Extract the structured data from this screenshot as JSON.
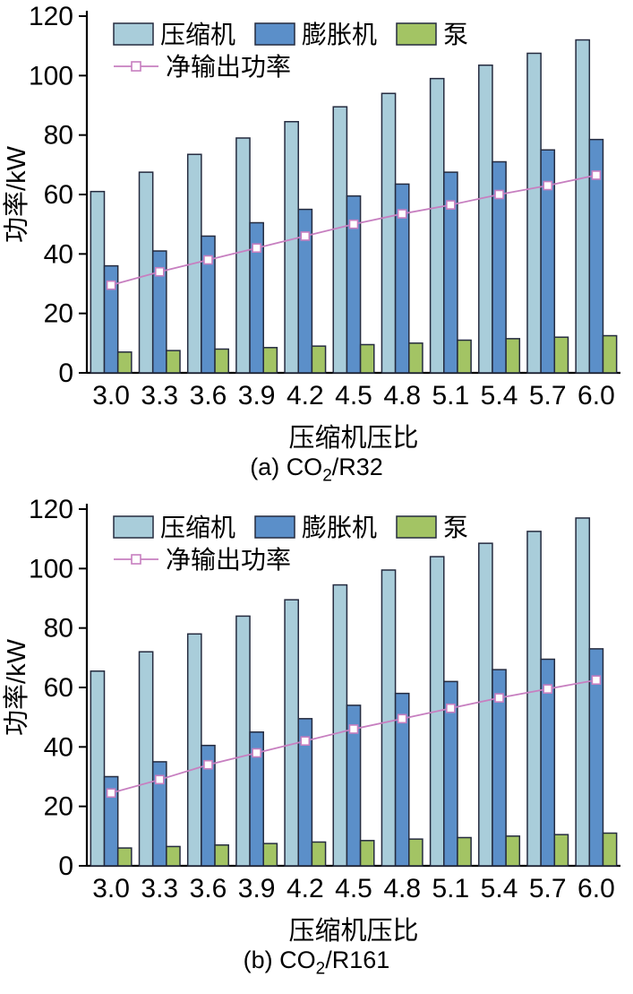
{
  "captions": [
    {
      "pre": "(a) CO",
      "sub": "2",
      "post": "/R32"
    },
    {
      "pre": "(b) CO",
      "sub": "2",
      "post": "/R161"
    }
  ],
  "chart_data": [
    {
      "type": "bar",
      "title": "(a) CO2/R32",
      "xlabel": "压缩机压比",
      "ylabel": "功率/kW",
      "ylim": [
        0,
        120
      ],
      "yticks": [
        0,
        20,
        40,
        60,
        80,
        100,
        120
      ],
      "grid": false,
      "legend_position": "top-left",
      "bar_edge_color": "#252b3f",
      "categories": [
        "3.0",
        "3.3",
        "3.6",
        "3.9",
        "4.2",
        "4.5",
        "4.8",
        "5.1",
        "5.4",
        "5.7",
        "6.0"
      ],
      "series": [
        {
          "name": "压缩机",
          "type": "bar",
          "color": "#a9cdda",
          "values": [
            61,
            67.5,
            73.5,
            79,
            84.5,
            89.5,
            94,
            99,
            103.5,
            107.5,
            112
          ]
        },
        {
          "name": "膨胀机",
          "type": "bar",
          "color": "#5b8fc9",
          "values": [
            36,
            41,
            46,
            50.5,
            55,
            59.5,
            63.5,
            67.5,
            71,
            75,
            78.5
          ]
        },
        {
          "name": "泵",
          "type": "bar",
          "color": "#a3c464",
          "values": [
            7,
            7.5,
            8,
            8.5,
            9,
            9.5,
            10,
            11,
            11.5,
            12,
            12.5
          ]
        }
      ],
      "line_series": {
        "name": "净输出功率",
        "type": "line",
        "color": "#c77fc0",
        "marker": "square",
        "values": [
          29.5,
          34,
          38,
          42,
          46,
          50,
          53.5,
          56.5,
          60,
          63,
          66.5
        ]
      }
    },
    {
      "type": "bar",
      "title": "(b) CO2/R161",
      "xlabel": "压缩机压比",
      "ylabel": "功率/kW",
      "ylim": [
        0,
        120
      ],
      "yticks": [
        0,
        20,
        40,
        60,
        80,
        100,
        120
      ],
      "grid": false,
      "legend_position": "top-left",
      "bar_edge_color": "#252b3f",
      "categories": [
        "3.0",
        "3.3",
        "3.6",
        "3.9",
        "4.2",
        "4.5",
        "4.8",
        "5.1",
        "5.4",
        "5.7",
        "6.0"
      ],
      "series": [
        {
          "name": "压缩机",
          "type": "bar",
          "color": "#a9cdda",
          "values": [
            65.5,
            72,
            78,
            84,
            89.5,
            94.5,
            99.5,
            104,
            108.5,
            112.5,
            117
          ]
        },
        {
          "name": "膨胀机",
          "type": "bar",
          "color": "#5b8fc9",
          "values": [
            30,
            35,
            40.5,
            45,
            49.5,
            54,
            58,
            62,
            66,
            69.5,
            73
          ]
        },
        {
          "name": "泵",
          "type": "bar",
          "color": "#a3c464",
          "values": [
            6,
            6.5,
            7,
            7.5,
            8,
            8.5,
            9,
            9.5,
            10,
            10.5,
            11
          ]
        }
      ],
      "line_series": {
        "name": "净输出功率",
        "type": "line",
        "color": "#c77fc0",
        "marker": "square",
        "values": [
          24.5,
          29,
          34,
          38,
          42,
          46,
          49.5,
          53,
          56.5,
          59.5,
          62.5
        ]
      }
    }
  ]
}
